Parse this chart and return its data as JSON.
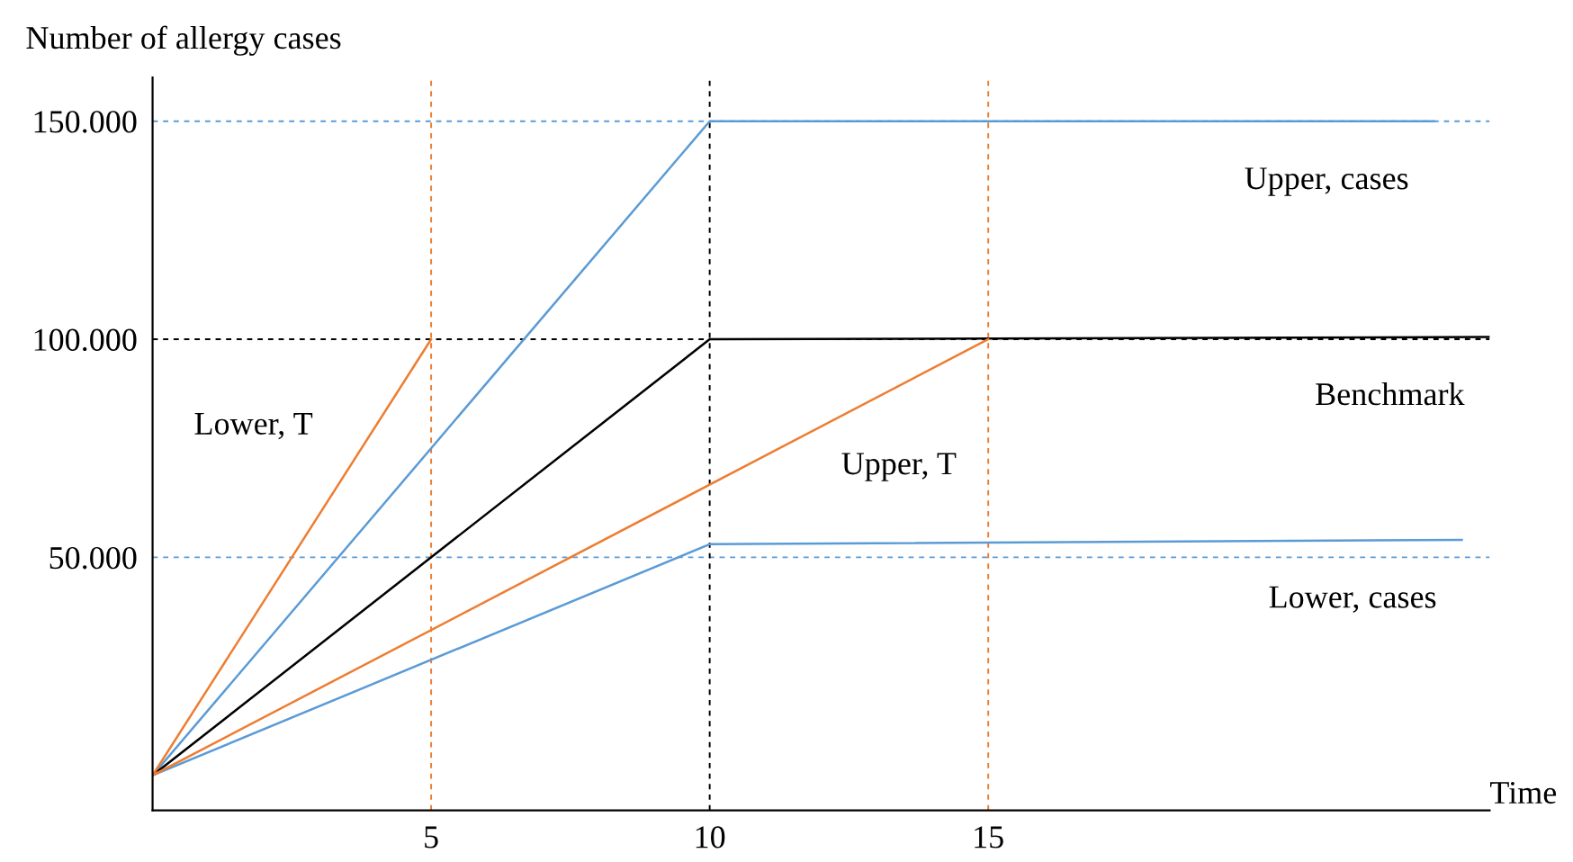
{
  "chart_data": {
    "type": "line",
    "xlabel": "Time",
    "ylabel": "Number of allergy cases",
    "xlim": [
      0,
      24
    ],
    "ylim": [
      -8000,
      160000
    ],
    "xticks": [
      5,
      10,
      15
    ],
    "yticks": [
      {
        "value": 50000,
        "label": "50.000"
      },
      {
        "value": 100000,
        "label": "100.000"
      },
      {
        "value": 150000,
        "label": "150.000"
      }
    ],
    "grid": false,
    "legend": false,
    "marker": "none",
    "line_style": "solid",
    "series": [
      {
        "name": "Upper, cases",
        "color": "#5b9bd5",
        "x": [
          0,
          10,
          23
        ],
        "values": [
          0,
          150000,
          150000
        ]
      },
      {
        "name": "Benchmark",
        "color": "#000000",
        "x": [
          0,
          10,
          24
        ],
        "values": [
          0,
          100000,
          100500
        ]
      },
      {
        "name": "Lower, cases",
        "color": "#5b9bd5",
        "x": [
          0,
          10,
          23.5
        ],
        "values": [
          0,
          53000,
          54000
        ]
      },
      {
        "name": "Lower, T",
        "color": "#ed7d31",
        "x": [
          0,
          5
        ],
        "values": [
          0,
          100000
        ]
      },
      {
        "name": "Upper, T",
        "color": "#ed7d31",
        "x": [
          0,
          15
        ],
        "values": [
          0,
          100000
        ]
      }
    ],
    "ref_lines": [
      {
        "axis": "y",
        "value": 150000,
        "color": "#5b9bd5",
        "line_style": "dashed"
      },
      {
        "axis": "y",
        "value": 100000,
        "color": "#000000",
        "line_style": "dashed"
      },
      {
        "axis": "y",
        "value": 50000,
        "color": "#5b9bd5",
        "line_style": "dashed"
      },
      {
        "axis": "x",
        "value": 5,
        "color": "#ed7d31",
        "line_style": "dashed"
      },
      {
        "axis": "x",
        "value": 10,
        "color": "#000000",
        "line_style": "dashed"
      },
      {
        "axis": "x",
        "value": 15,
        "color": "#ed7d31",
        "line_style": "dashed"
      }
    ]
  }
}
